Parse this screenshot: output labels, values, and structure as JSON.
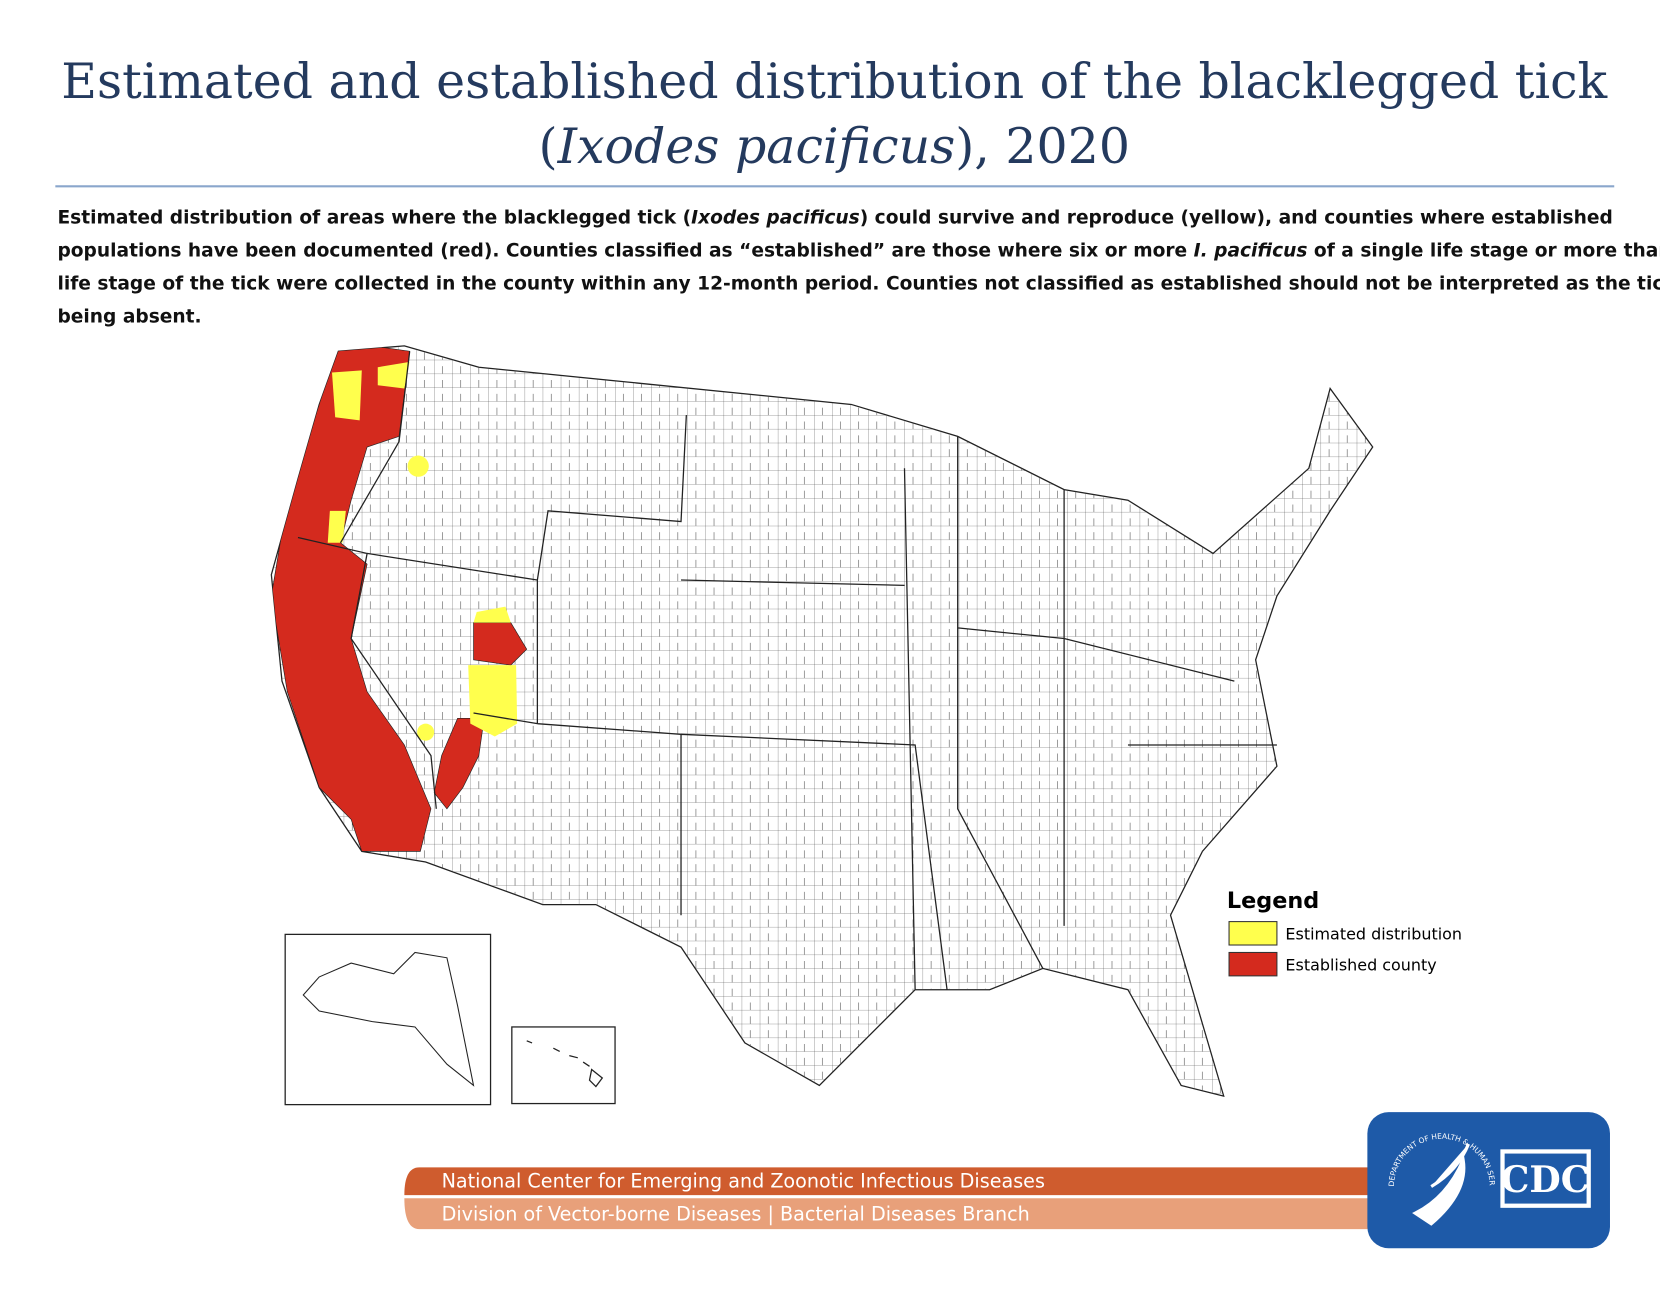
{
  "header": {
    "title_line1": "Estimated and established distribution of the blacklegged tick",
    "title_line2": [
      "(",
      "Ixodes pacificus",
      "), 2020"
    ]
  },
  "description": {
    "lines": [
      [
        "Estimated distribution of areas where the blacklegged tick (",
        "Ixodes pacificus",
        ") could survive and reproduce (yellow), and counties where established"
      ],
      [
        "populations have been documented (red). Counties classified as “established” are those where six or more ",
        "I. pacificus",
        " of a single life stage or more than one"
      ],
      [
        "life stage of the tick were collected in the county within any 12-month period.  Counties not classified as established should not be interpreted as the tick"
      ],
      [
        "being absent."
      ]
    ]
  },
  "legend": {
    "title": "Legend",
    "items": [
      {
        "label": "Estimated distribution",
        "color": "#ffff4d"
      },
      {
        "label": "Established county",
        "color": "#d42a1e"
      }
    ]
  },
  "footer": {
    "line1": "National Center for Emerging and Zoonotic Infectious Diseases",
    "line2": "Division of Vector-borne Diseases | Bacterial Diseases Branch"
  },
  "logo": {
    "seal": "DEPARTMENT OF HEALTH & HUMAN SERVICES USA",
    "text": "CDC"
  }
}
